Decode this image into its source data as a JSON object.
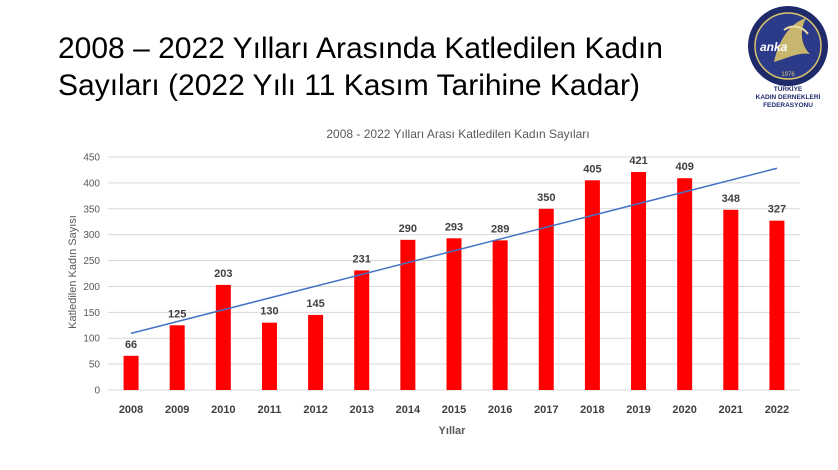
{
  "slide": {
    "title_line1": "2008 – 2022 Yılları Arasında Katledilen Kadın",
    "title_line2": "Sayıları (2022 Yılı 11 Kasım Tarihine Kadar)"
  },
  "logo": {
    "wordmark": "anka",
    "year": "1976",
    "caption": [
      "TÜRKİYE",
      "KADIN DERNEKLERİ",
      "FEDERASYONU"
    ]
  },
  "colors": {
    "bar": "#ff0000",
    "trendline": "#4472c4",
    "gridline": "#d9d9d9",
    "logo_ring": "#1f2a6b",
    "logo_fill": "#2c3a8a"
  },
  "chart_data": {
    "type": "bar",
    "title": "2008 - 2022 Yılları Arası Katledilen Kadın Sayıları",
    "xlabel": "Yıllar",
    "ylabel": "Katledilen Kadın Sayısı",
    "categories": [
      "2008",
      "2009",
      "2010",
      "2011",
      "2012",
      "2013",
      "2014",
      "2015",
      "2016",
      "2017",
      "2018",
      "2019",
      "2020",
      "2021",
      "2022"
    ],
    "values": [
      66,
      125,
      203,
      130,
      145,
      231,
      290,
      293,
      289,
      350,
      405,
      421,
      409,
      348,
      327
    ],
    "ylim": [
      0,
      450
    ],
    "yticks": [
      0,
      50,
      100,
      150,
      200,
      250,
      300,
      350,
      400,
      450
    ],
    "grid": true,
    "legend": "none",
    "data_labels": true,
    "trendline": "linear"
  }
}
